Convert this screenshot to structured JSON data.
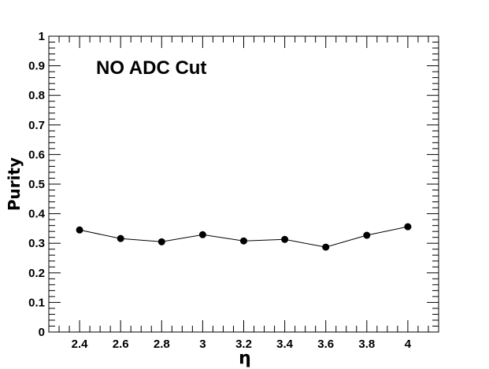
{
  "chart_data": {
    "type": "line",
    "title": "",
    "annotation": "NO ADC Cut",
    "xlabel": "η",
    "ylabel": "Purity",
    "xlim": [
      2.25,
      4.15
    ],
    "ylim": [
      0,
      1
    ],
    "x_ticks": [
      2.4,
      2.6,
      2.8,
      3,
      3.2,
      3.4,
      3.6,
      3.8,
      4
    ],
    "x_tick_labels": [
      "2.4",
      "2.6",
      "2.8",
      "3",
      "3.2",
      "3.4",
      "3.6",
      "3.8",
      "4"
    ],
    "y_ticks": [
      0,
      0.1,
      0.2,
      0.3,
      0.4,
      0.5,
      0.6,
      0.7,
      0.8,
      0.9,
      1
    ],
    "y_tick_labels": [
      "0",
      "0.1",
      "0.2",
      "0.3",
      "0.4",
      "0.5",
      "0.6",
      "0.7",
      "0.8",
      "0.9",
      "1"
    ],
    "grid": false,
    "series": [
      {
        "x": [
          2.4,
          2.6,
          2.8,
          3.0,
          3.2,
          3.4,
          3.6,
          3.8,
          4.0
        ],
        "values": [
          0.345,
          0.316,
          0.305,
          0.329,
          0.308,
          0.313,
          0.287,
          0.327,
          0.356
        ],
        "color": "#000000"
      }
    ]
  }
}
